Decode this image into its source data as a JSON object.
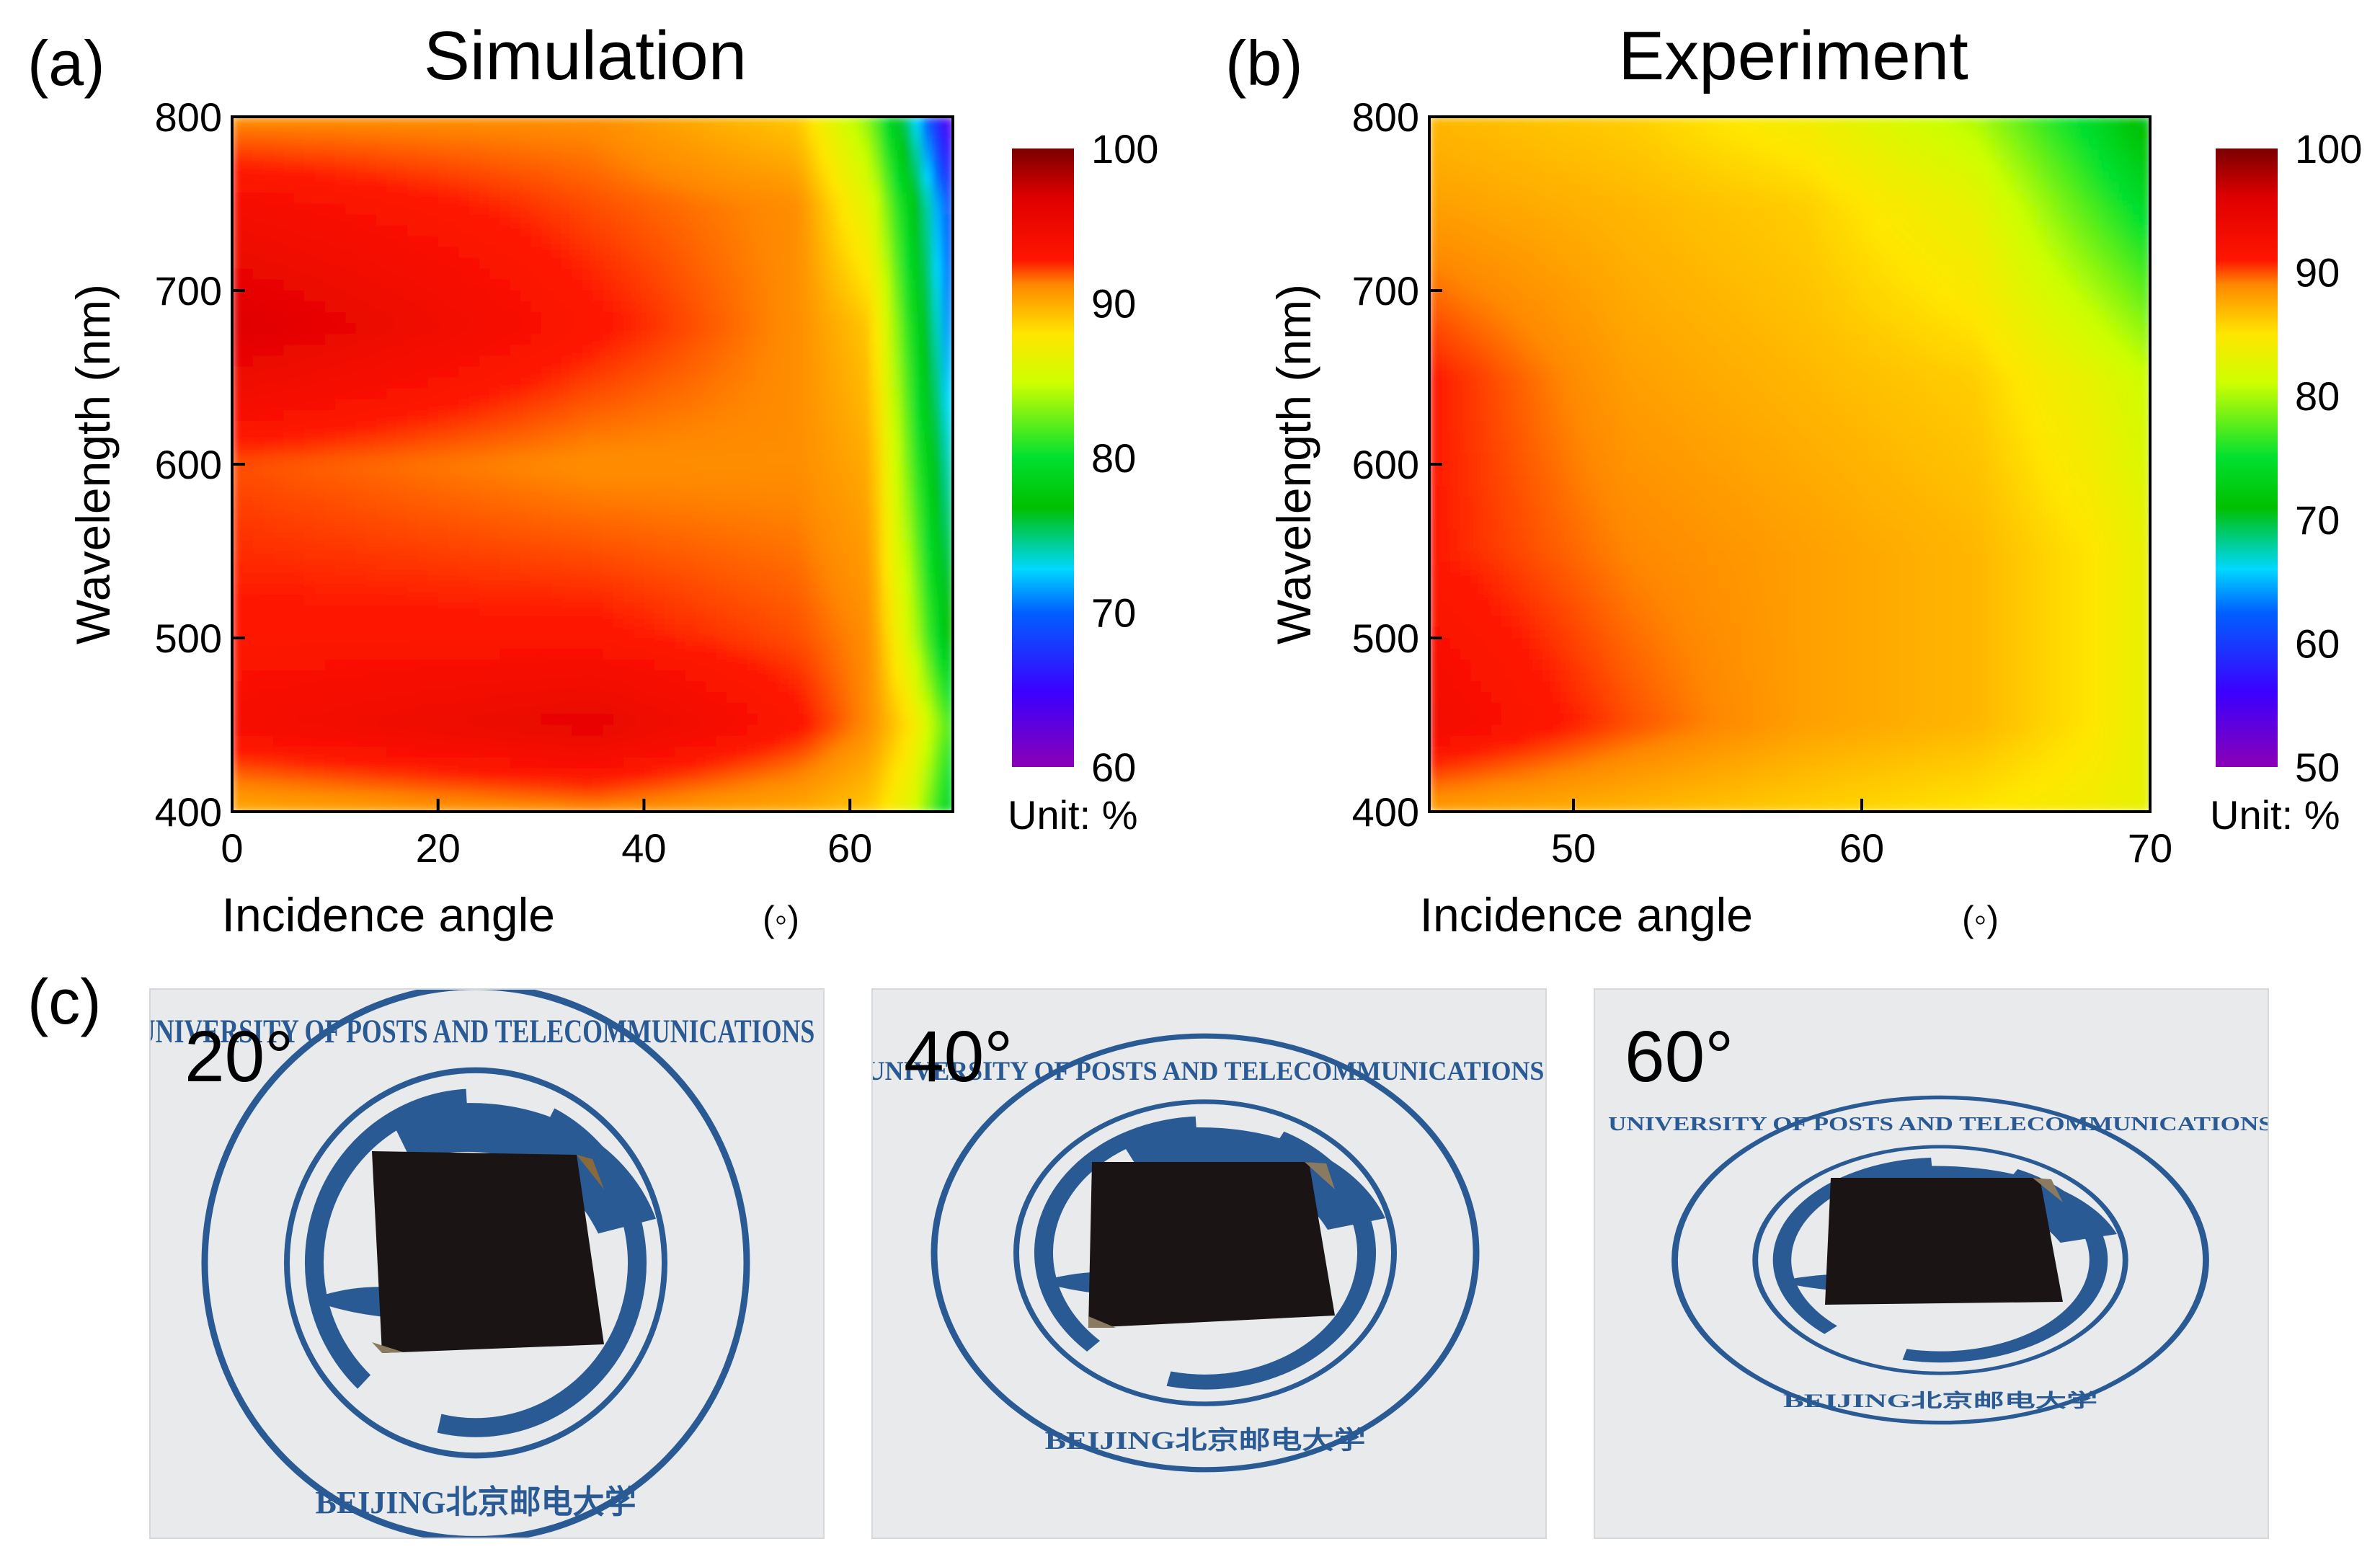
{
  "chart_data": [
    {
      "panel_label": "(a)",
      "type": "heatmap",
      "title": "Simulation",
      "xlabel": "Incidence angle",
      "xunit": "(◦)",
      "ylabel": "Wavelength (nm)",
      "xlim": [
        0,
        70
      ],
      "ylim": [
        400,
        800
      ],
      "xticks": [
        "0",
        "20",
        "40",
        "60"
      ],
      "yticks": [
        "400",
        "500",
        "600",
        "700",
        "800"
      ],
      "colorbar": {
        "min": 60,
        "max": 100,
        "ticks": [
          "60",
          "70",
          "80",
          "90",
          "100"
        ],
        "unit_label": "Unit: %"
      },
      "x": [
        0,
        35,
        55,
        62,
        66,
        70
      ],
      "y": [
        400,
        450,
        500,
        600,
        680,
        750,
        800
      ],
      "z": [
        [
          90,
          91,
          90,
          89,
          86,
          78
        ],
        [
          94,
          96,
          93,
          91,
          88,
          81
        ],
        [
          93,
          93,
          92,
          91,
          85,
          76
        ],
        [
          92,
          91,
          91,
          90,
          82,
          73
        ],
        [
          97,
          93,
          91,
          89,
          80,
          70
        ],
        [
          94,
          92,
          91,
          86,
          78,
          68
        ],
        [
          91,
          91,
          89,
          83,
          74,
          62
        ]
      ]
    },
    {
      "panel_label": "(b)",
      "type": "heatmap",
      "title": "Experiment",
      "xlabel": "Incidence angle",
      "xunit": "(◦)",
      "ylabel": "Wavelength (nm)",
      "xlim": [
        45,
        70
      ],
      "ylim": [
        400,
        800
      ],
      "xticks": [
        "50",
        "60",
        "70"
      ],
      "yticks": [
        "400",
        "500",
        "600",
        "700",
        "800"
      ],
      "colorbar": {
        "min": 50,
        "max": 100,
        "ticks": [
          "50",
          "60",
          "70",
          "80",
          "90",
          "100"
        ],
        "unit_label": "Unit: %"
      },
      "x": [
        45,
        52,
        58,
        64,
        68,
        70
      ],
      "y": [
        400,
        450,
        550,
        650,
        750,
        800
      ],
      "z": [
        [
          88,
          87,
          86,
          85,
          84,
          83
        ],
        [
          93,
          90,
          88,
          87,
          85,
          83
        ],
        [
          91,
          89,
          88,
          87,
          85,
          83
        ],
        [
          91,
          88,
          87,
          86,
          83,
          81
        ],
        [
          88,
          87,
          86,
          83,
          77,
          74
        ],
        [
          87,
          86,
          84,
          80,
          74,
          70
        ]
      ]
    }
  ],
  "photos_panel": {
    "label": "(c)",
    "photos": [
      {
        "angle_label": "20°",
        "seal_outer_text": "UNIVERSITY OF POSTS AND TELECOMMUNICATIONS",
        "seal_inner_text": "BEIJING北京邮电大学"
      },
      {
        "angle_label": "40°",
        "seal_outer_text": "UNIVERSITY OF POSTS AND TELECOMMUNICATIONS",
        "seal_inner_text": "BEIJING北京邮电大学"
      },
      {
        "angle_label": "60°",
        "seal_outer_text": "UNIVERSITY OF POSTS AND TELECOMMUNICATIONS",
        "seal_inner_text": "BEIJING北京邮电大学"
      }
    ]
  },
  "colors": {
    "seal_blue": "#2a5a94",
    "paper": "#e9eaec",
    "sample_dark": "#1a1414",
    "map_red": "#ff1500",
    "map_darkred": "#8a0000"
  }
}
